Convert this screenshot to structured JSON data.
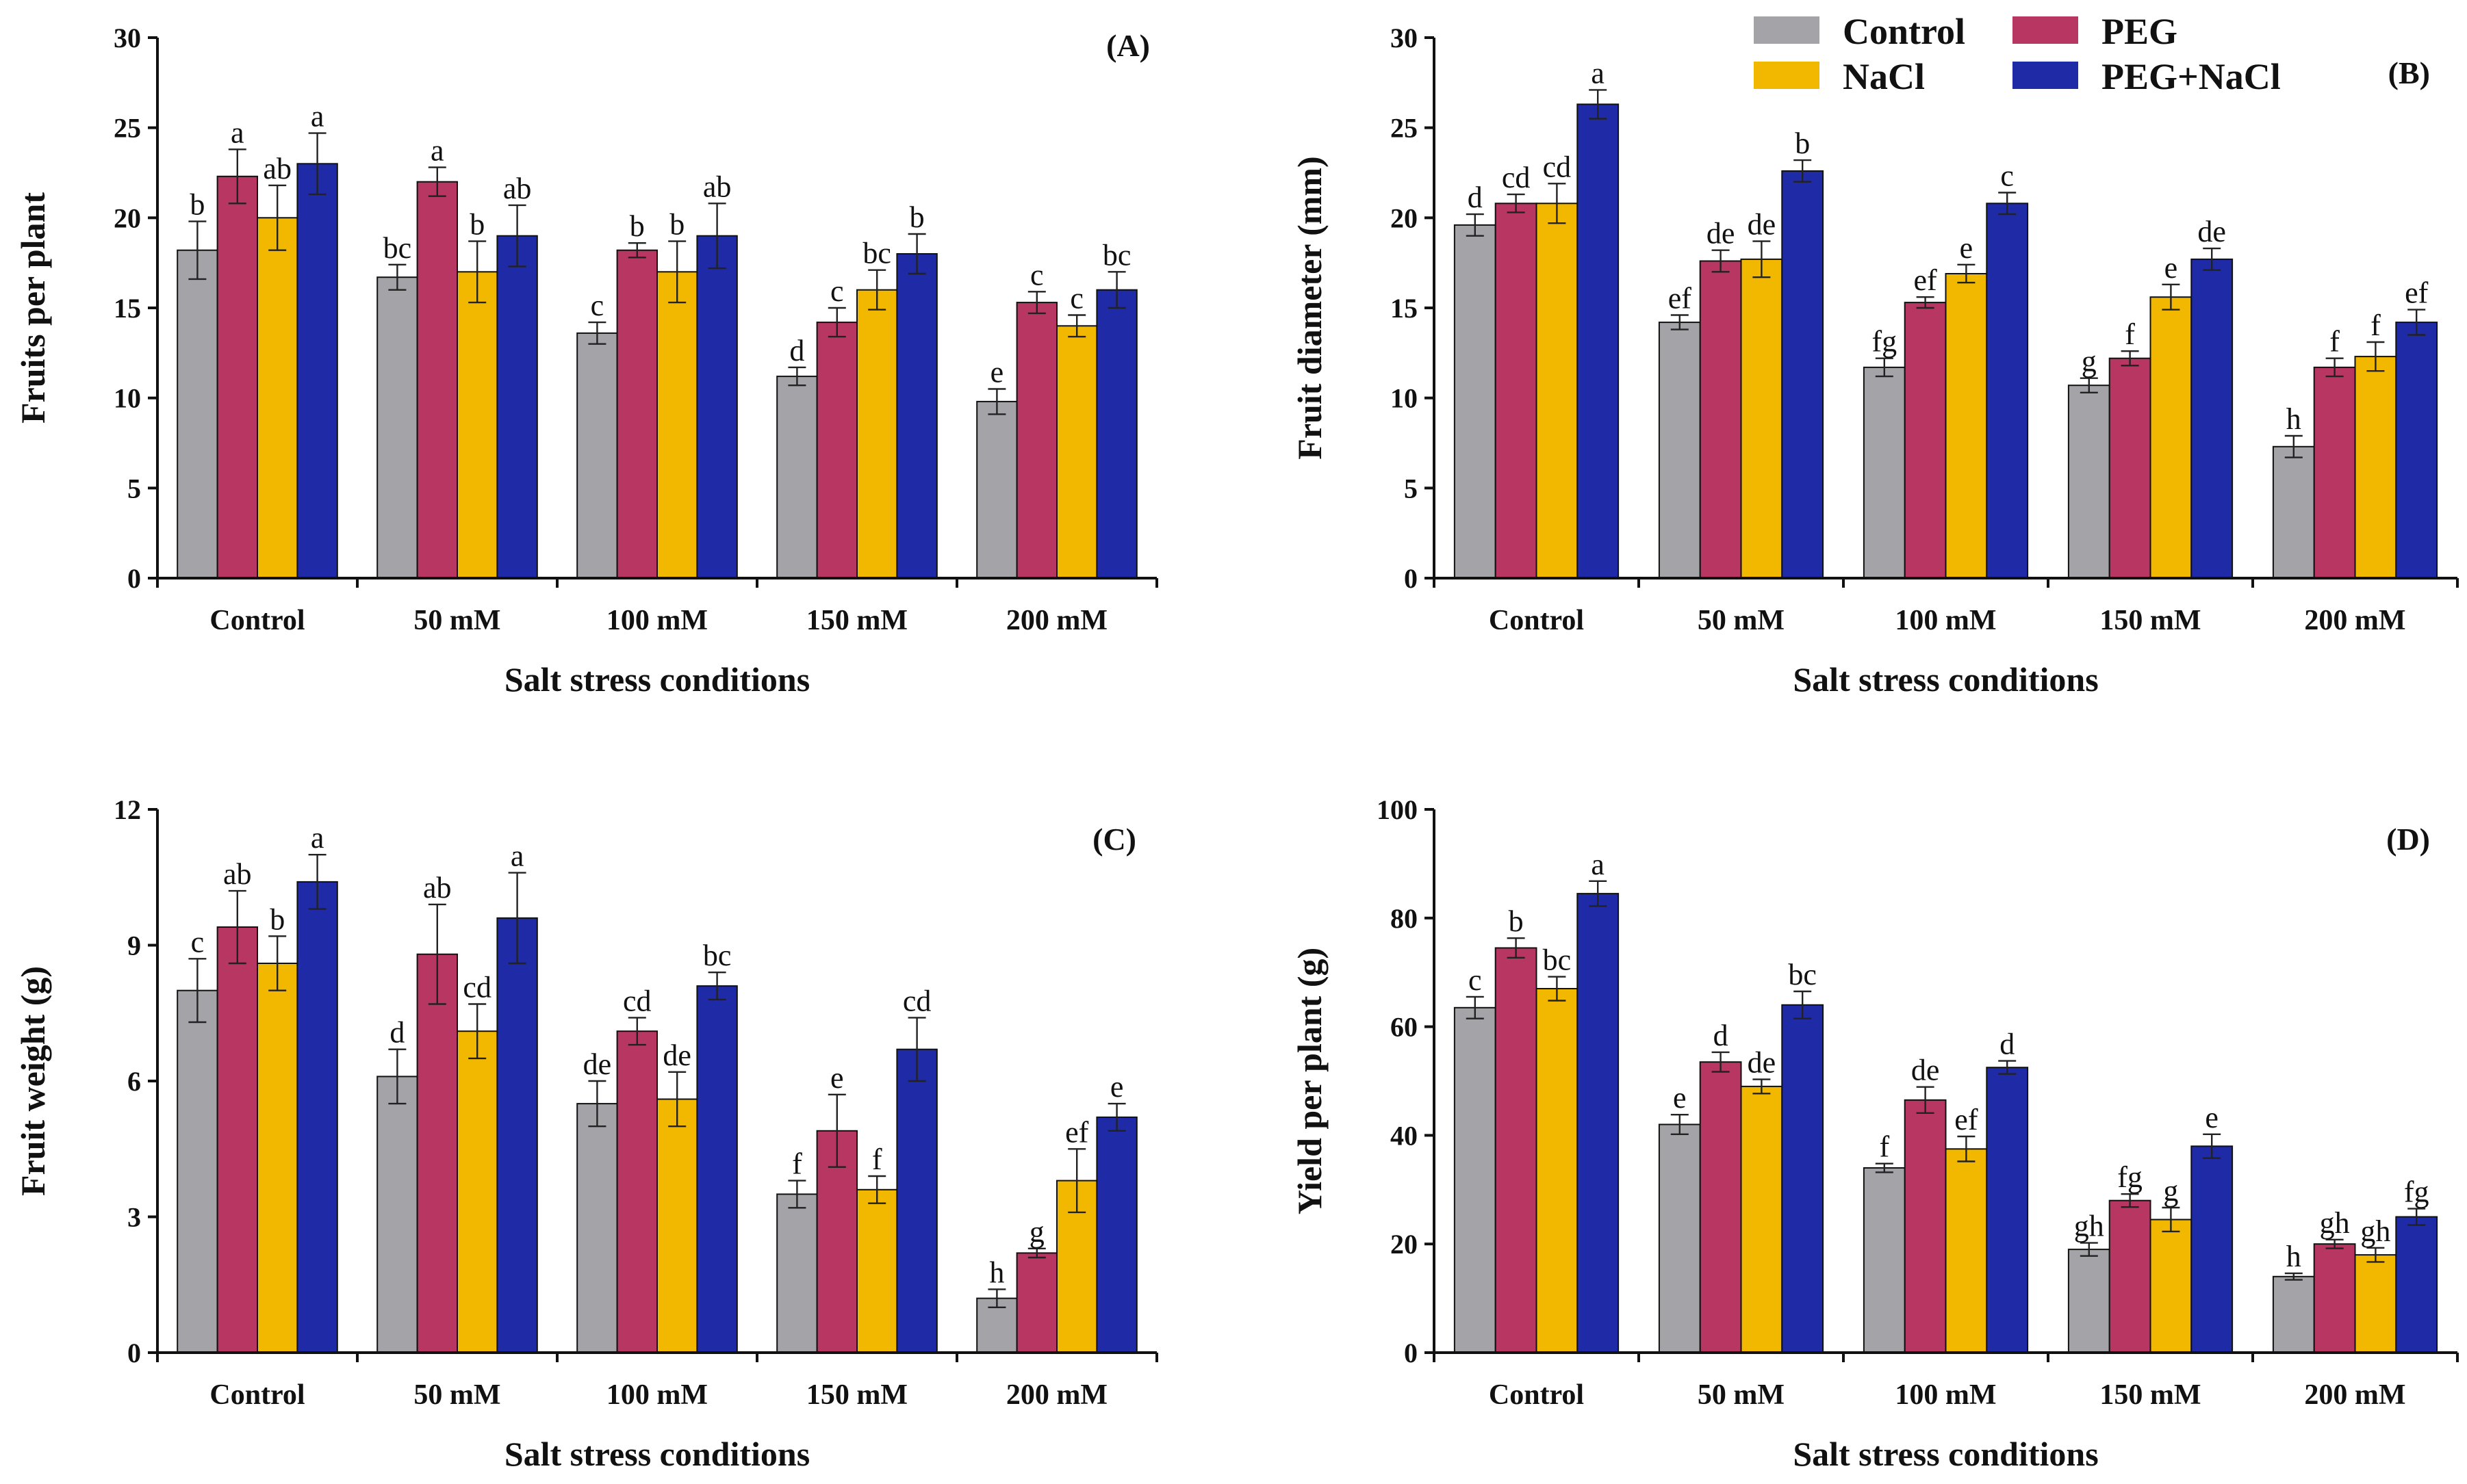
{
  "legend": {
    "items": [
      {
        "name": "Control",
        "color": "#a4a3a8"
      },
      {
        "name": "PEG",
        "color": "#b83762"
      },
      {
        "name": "NaCl",
        "color": "#f2b800"
      },
      {
        "name": "PEG+NaCl",
        "color": "#1f2aa6"
      }
    ]
  },
  "chart_data": [
    {
      "type": "bar",
      "panel": "(A)",
      "xlabel": "Salt stress conditions",
      "ylabel": "Fruits per plant",
      "ylim": [
        0,
        30
      ],
      "yticks": [
        0,
        5,
        10,
        15,
        20,
        25,
        30
      ],
      "categories": [
        "Control",
        "50 mM",
        "100 mM",
        "150 mM",
        "200 mM"
      ],
      "series": [
        {
          "name": "Control",
          "values": [
            18.2,
            16.7,
            13.6,
            11.2,
            9.8
          ],
          "errors": [
            1.6,
            0.7,
            0.6,
            0.5,
            0.7
          ],
          "letters": [
            "b",
            "bc",
            "c",
            "d",
            "e"
          ]
        },
        {
          "name": "PEG",
          "values": [
            22.3,
            22.0,
            18.2,
            14.2,
            15.3
          ],
          "errors": [
            1.5,
            0.8,
            0.4,
            0.8,
            0.6
          ],
          "letters": [
            "a",
            "a",
            "b",
            "c",
            "c"
          ]
        },
        {
          "name": "NaCl",
          "values": [
            20.0,
            17.0,
            17.0,
            16.0,
            14.0
          ],
          "errors": [
            1.8,
            1.7,
            1.7,
            1.1,
            0.6
          ],
          "letters": [
            "ab",
            "b",
            "b",
            "bc",
            "c"
          ]
        },
        {
          "name": "PEG+NaCl",
          "values": [
            23.0,
            19.0,
            19.0,
            18.0,
            16.0
          ],
          "errors": [
            1.7,
            1.7,
            1.8,
            1.1,
            1.0
          ],
          "letters": [
            "a",
            "ab",
            "ab",
            "b",
            "bc"
          ]
        }
      ]
    },
    {
      "type": "bar",
      "panel": "(B)",
      "xlabel": "Salt stress conditions",
      "ylabel": "Fruit diameter (mm)",
      "ylim": [
        0,
        30
      ],
      "yticks": [
        0,
        5,
        10,
        15,
        20,
        25,
        30
      ],
      "categories": [
        "Control",
        "50 mM",
        "100 mM",
        "150 mM",
        "200 mM"
      ],
      "series": [
        {
          "name": "Control",
          "values": [
            19.6,
            14.2,
            11.7,
            10.7,
            7.3
          ],
          "errors": [
            0.6,
            0.4,
            0.5,
            0.4,
            0.6
          ],
          "letters": [
            "d",
            "ef",
            "fg",
            "g",
            "h"
          ]
        },
        {
          "name": "PEG",
          "values": [
            20.8,
            17.6,
            15.3,
            12.2,
            11.7
          ],
          "errors": [
            0.5,
            0.6,
            0.3,
            0.4,
            0.5
          ],
          "letters": [
            "cd",
            "de",
            "ef",
            "f",
            "f"
          ]
        },
        {
          "name": "NaCl",
          "values": [
            20.8,
            17.7,
            16.9,
            15.6,
            12.3
          ],
          "errors": [
            1.1,
            1.0,
            0.5,
            0.7,
            0.8
          ],
          "letters": [
            "cd",
            "de",
            "e",
            "e",
            "f"
          ]
        },
        {
          "name": "PEG+NaCl",
          "values": [
            26.3,
            22.6,
            20.8,
            17.7,
            14.2
          ],
          "errors": [
            0.8,
            0.6,
            0.6,
            0.6,
            0.7
          ],
          "letters": [
            "a",
            "b",
            "c",
            "de",
            "ef"
          ]
        }
      ]
    },
    {
      "type": "bar",
      "panel": "(C)",
      "xlabel": "Salt stress conditions",
      "ylabel": "Fruit weight (g)",
      "ylim": [
        0,
        12
      ],
      "yticks": [
        0,
        3,
        6,
        9,
        12
      ],
      "categories": [
        "Control",
        "50 mM",
        "100 mM",
        "150 mM",
        "200 mM"
      ],
      "series": [
        {
          "name": "Control",
          "values": [
            8.0,
            6.1,
            5.5,
            3.5,
            1.2
          ],
          "errors": [
            0.7,
            0.6,
            0.5,
            0.3,
            0.2
          ],
          "letters": [
            "c",
            "d",
            "de",
            "f",
            "h"
          ]
        },
        {
          "name": "PEG",
          "values": [
            9.4,
            8.8,
            7.1,
            4.9,
            2.2
          ],
          "errors": [
            0.8,
            1.1,
            0.3,
            0.8,
            0.1
          ],
          "letters": [
            "ab",
            "ab",
            "cd",
            "e",
            "g"
          ]
        },
        {
          "name": "NaCl",
          "values": [
            8.6,
            7.1,
            5.6,
            3.6,
            3.8
          ],
          "errors": [
            0.6,
            0.6,
            0.6,
            0.3,
            0.7
          ],
          "letters": [
            "b",
            "cd",
            "de",
            "f",
            "ef"
          ]
        },
        {
          "name": "PEG+NaCl",
          "values": [
            10.4,
            9.6,
            8.1,
            6.7,
            5.2
          ],
          "errors": [
            0.6,
            1.0,
            0.3,
            0.7,
            0.3
          ],
          "letters": [
            "a",
            "a",
            "bc",
            "cd",
            "e"
          ]
        }
      ]
    },
    {
      "type": "bar",
      "panel": "(D)",
      "xlabel": "Salt stress conditions",
      "ylabel": "Yield per plant (g)",
      "ylim": [
        0,
        100
      ],
      "yticks": [
        0,
        20,
        40,
        60,
        80,
        100
      ],
      "categories": [
        "Control",
        "50 mM",
        "100 mM",
        "150 mM",
        "200 mM"
      ],
      "series": [
        {
          "name": "Control",
          "values": [
            63.5,
            42.0,
            34.0,
            19.0,
            14.0
          ],
          "errors": [
            2.0,
            1.8,
            0.8,
            1.2,
            0.6
          ],
          "letters": [
            "c",
            "e",
            "f",
            "gh",
            "h"
          ]
        },
        {
          "name": "PEG",
          "values": [
            74.5,
            53.5,
            46.5,
            28.0,
            20.0
          ],
          "errors": [
            1.8,
            1.8,
            2.4,
            1.2,
            0.8
          ],
          "letters": [
            "b",
            "d",
            "de",
            "fg",
            "gh"
          ]
        },
        {
          "name": "NaCl",
          "values": [
            67.0,
            49.0,
            37.5,
            24.5,
            18.0
          ],
          "errors": [
            2.2,
            1.3,
            2.3,
            2.2,
            1.3
          ],
          "letters": [
            "bc",
            "de",
            "ef",
            "g",
            "gh"
          ]
        },
        {
          "name": "PEG+NaCl",
          "values": [
            84.5,
            64.0,
            52.5,
            38.0,
            25.0
          ],
          "errors": [
            2.3,
            2.5,
            1.2,
            2.2,
            1.5
          ],
          "letters": [
            "a",
            "bc",
            "d",
            "e",
            "fg"
          ]
        }
      ]
    }
  ]
}
